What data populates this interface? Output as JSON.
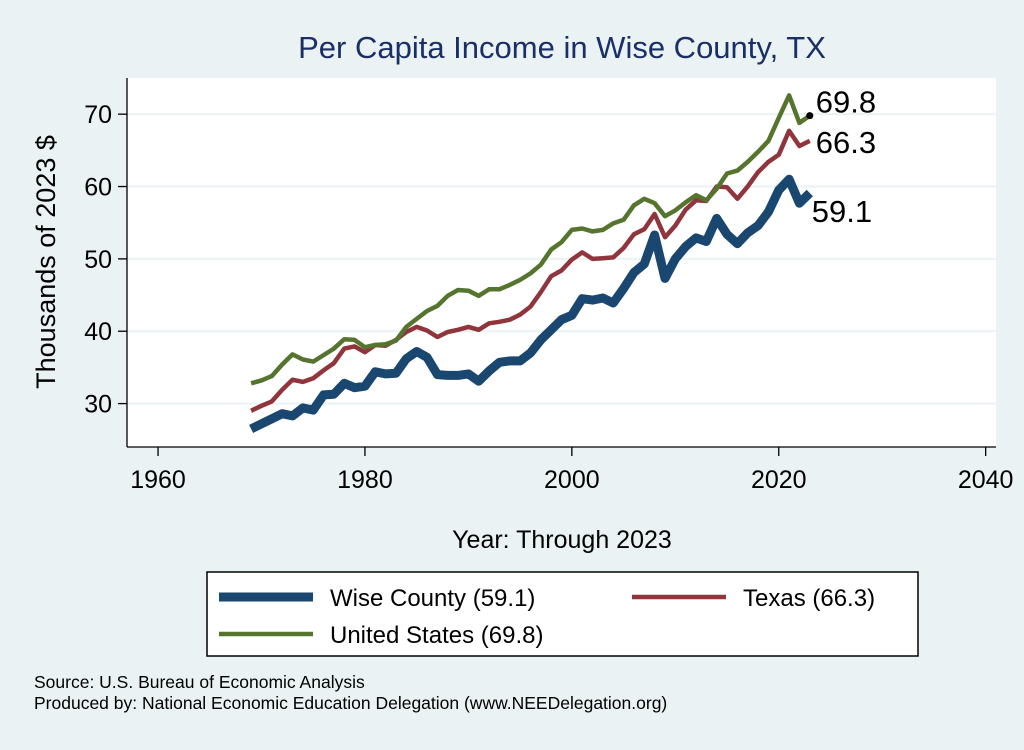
{
  "chart_data": {
    "type": "line",
    "title": "Per Capita Income in Wise County, TX",
    "xlabel": "Year: Through 2023",
    "ylabel": "Thousands of 2023 $",
    "xlim": [
      1957,
      2041
    ],
    "ylim": [
      24,
      75
    ],
    "xticks": [
      1960,
      1980,
      2000,
      2020,
      2040
    ],
    "yticks": [
      30,
      40,
      50,
      60,
      70
    ],
    "grid": "horizontal",
    "legend_position": "bottom",
    "years": [
      1969,
      1970,
      1971,
      1972,
      1973,
      1974,
      1975,
      1976,
      1977,
      1978,
      1979,
      1980,
      1981,
      1982,
      1983,
      1984,
      1985,
      1986,
      1987,
      1988,
      1989,
      1990,
      1991,
      1992,
      1993,
      1994,
      1995,
      1996,
      1997,
      1998,
      1999,
      2000,
      2001,
      2002,
      2003,
      2004,
      2005,
      2006,
      2007,
      2008,
      2009,
      2010,
      2011,
      2012,
      2013,
      2014,
      2015,
      2016,
      2017,
      2018,
      2019,
      2020,
      2021,
      2022,
      2023
    ],
    "series": [
      {
        "name": "Wise County (59.1)",
        "color": "#1a476f",
        "end_label": "59.1",
        "values": [
          26.5,
          27.2,
          27.9,
          28.6,
          28.3,
          29.4,
          29.1,
          31.2,
          31.3,
          32.8,
          32.2,
          32.4,
          34.4,
          34.1,
          34.2,
          36.2,
          37.2,
          36.4,
          34.0,
          33.9,
          33.9,
          34.1,
          33.1,
          34.5,
          35.7,
          35.9,
          35.9,
          37.0,
          38.8,
          40.2,
          41.6,
          42.2,
          44.5,
          44.3,
          44.6,
          43.9,
          45.9,
          48.1,
          49.3,
          53.3,
          47.3,
          50.0,
          51.7,
          52.9,
          52.4,
          55.6,
          53.4,
          52.1,
          53.6,
          54.6,
          56.5,
          59.5,
          61.0,
          57.7,
          59.1
        ]
      },
      {
        "name": "Texas (66.3)",
        "color": "#90353b",
        "end_label": "66.3",
        "values": [
          29.0,
          29.7,
          30.3,
          31.9,
          33.3,
          33.0,
          33.5,
          34.6,
          35.6,
          37.6,
          37.9,
          37.1,
          38.1,
          38.0,
          38.8,
          39.9,
          40.6,
          40.1,
          39.2,
          39.9,
          40.2,
          40.6,
          40.2,
          41.1,
          41.3,
          41.6,
          42.3,
          43.4,
          45.4,
          47.6,
          48.4,
          49.9,
          50.9,
          50.0,
          50.1,
          50.2,
          51.5,
          53.4,
          54.1,
          56.2,
          53.0,
          54.6,
          56.8,
          58.1,
          58.0,
          60.0,
          59.9,
          58.3,
          60.0,
          62.0,
          63.4,
          64.4,
          67.7,
          65.6,
          66.3
        ]
      },
      {
        "name": "United States (69.8)",
        "color": "#55752f",
        "end_label": "69.8",
        "values": [
          32.8,
          33.2,
          33.8,
          35.4,
          36.8,
          36.1,
          35.8,
          36.7,
          37.6,
          38.9,
          38.8,
          37.8,
          38.1,
          38.2,
          38.7,
          40.6,
          41.7,
          42.8,
          43.5,
          44.9,
          45.7,
          45.6,
          44.9,
          45.8,
          45.8,
          46.4,
          47.1,
          48.0,
          49.2,
          51.3,
          52.3,
          54.0,
          54.2,
          53.8,
          54.0,
          54.9,
          55.4,
          57.4,
          58.3,
          57.7,
          55.9,
          56.7,
          57.8,
          58.8,
          58.1,
          59.7,
          61.8,
          62.2,
          63.4,
          64.8,
          66.3,
          69.5,
          72.6,
          68.8,
          69.8
        ]
      }
    ],
    "legend": {
      "items": [
        "Wise County (59.1)",
        "Texas (66.3)",
        "United States (69.8)"
      ]
    }
  },
  "footer": {
    "source": "Source: U.S. Bureau of Economic Analysis",
    "produced_by": "Produced by: National Economic Education Delegation (www.NEEDelegation.org)"
  }
}
